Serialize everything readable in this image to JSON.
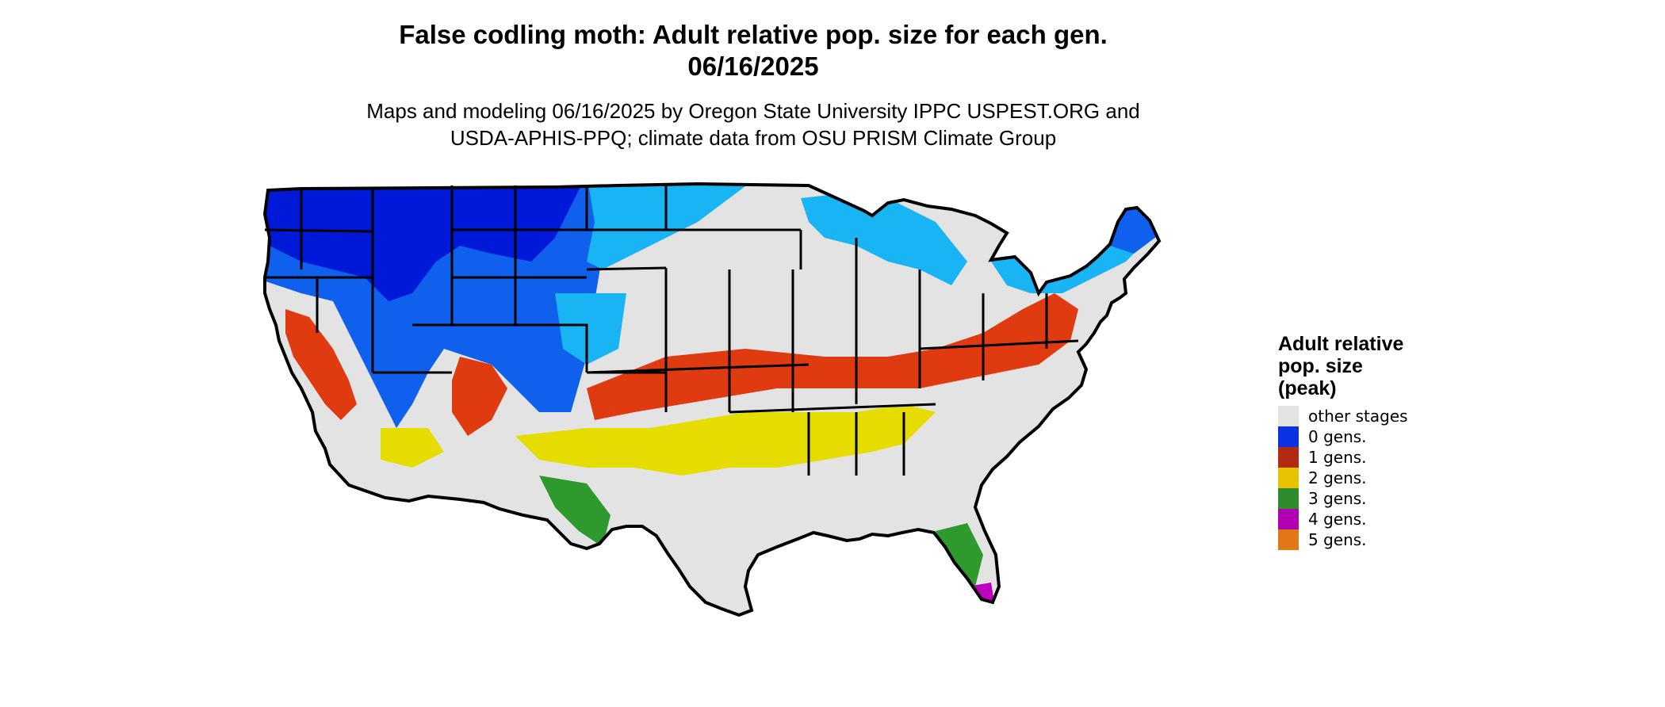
{
  "title": {
    "line1": "False codling moth: Adult relative pop. size for each gen.",
    "line2": "06/16/2025"
  },
  "subtitle": {
    "line1": "Maps and modeling 06/16/2025 by Oregon State University IPPC USPEST.ORG and",
    "line2": "USDA-APHIS-PPQ; climate data from OSU PRISM Climate Group"
  },
  "legend": {
    "title_lines": [
      "Adult relative",
      "pop. size",
      "(peak)"
    ],
    "items": [
      {
        "label": "other stages",
        "color": "#e3e3e3"
      },
      {
        "label": "0 gens.",
        "color": "#0a32e0"
      },
      {
        "label": "1 gens.",
        "color": "#b22a14"
      },
      {
        "label": "2 gens.",
        "color": "#e6c300"
      },
      {
        "label": "3 gens.",
        "color": "#2e8b2e"
      },
      {
        "label": "4 gens.",
        "color": "#b000b0"
      },
      {
        "label": "5 gens.",
        "color": "#e07818"
      }
    ]
  },
  "map_colors": {
    "background": "#e3e3e3",
    "zero_dark": "#0018d8",
    "zero_mid": "#1060ee",
    "zero_light": "#18b4f4",
    "one": "#e03a10",
    "two": "#e6dc00",
    "three": "#2e9a2e",
    "four": "#c000c0",
    "border": "#000000"
  }
}
